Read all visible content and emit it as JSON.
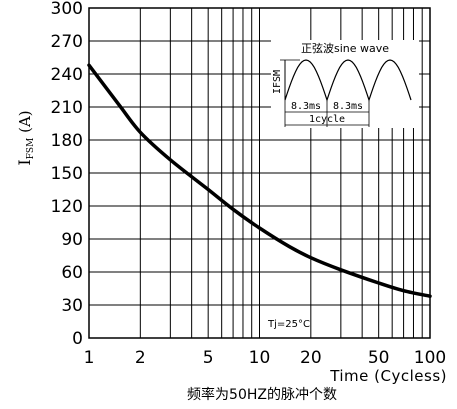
{
  "chart_data": {
    "type": "line",
    "x_scale": "log",
    "xlim": [
      1,
      100
    ],
    "ylim": [
      0,
      300
    ],
    "x_ticks": [
      1,
      2,
      5,
      10,
      20,
      50,
      100
    ],
    "y_ticks": [
      0,
      30,
      60,
      90,
      120,
      150,
      180,
      210,
      240,
      270,
      300
    ],
    "grid": true,
    "ylabel_main": "I",
    "ylabel_sub": "FSM",
    "ylabel_unit": "(A)",
    "xlabel": "Time (Cycless)",
    "caption": "频率为50HZ的脉冲个数",
    "annotation": "Tj=25°C",
    "series": [
      {
        "x": [
          1,
          1.5,
          2,
          3,
          5,
          7,
          10,
          15,
          20,
          30,
          50,
          70,
          100
        ],
        "y": [
          248,
          212,
          187,
          162,
          135,
          117,
          100,
          83,
          73,
          62,
          50,
          43,
          38
        ]
      }
    ],
    "inset": {
      "title": "正弦波sine wave",
      "peak_label": "IFSM",
      "half_cycle_label_1": "8.3ms",
      "half_cycle_label_2": "8.3ms",
      "cycle_label": "1cycle"
    }
  }
}
